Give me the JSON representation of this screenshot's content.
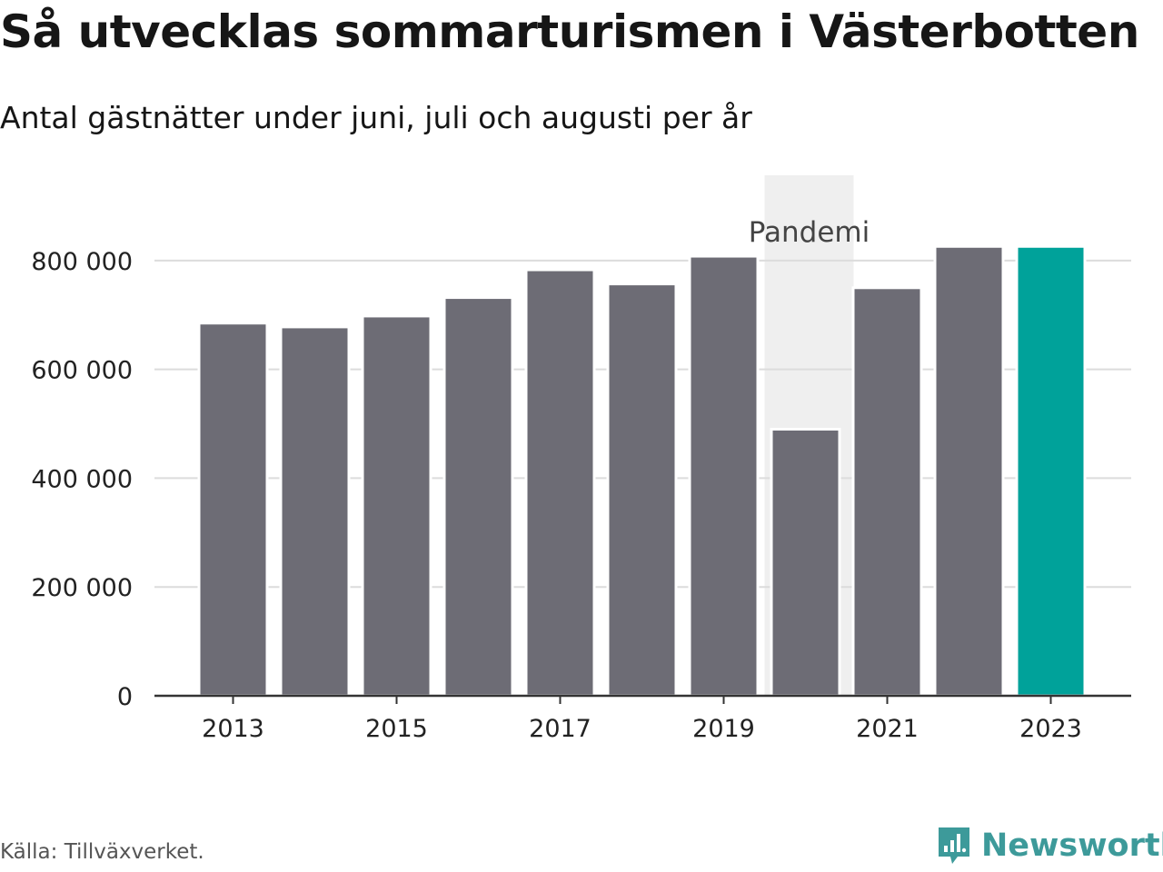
{
  "title": "Så utvecklas sommarturismen i Västerbotten",
  "subtitle": "Antal gästnätter under juni, juli och augusti per år",
  "source": "Källa: Tillväxverket.",
  "brand": {
    "name": "Newsworthy",
    "color": "#3d9a9a",
    "icon": "bar-chart-speech-bubble-icon"
  },
  "colors": {
    "bar": "#6d6c75",
    "highlight": "#00a29a",
    "band": "#efefef",
    "grid": "#dcdcdc",
    "axis": "#333333"
  },
  "chart_data": {
    "type": "bar",
    "categories": [
      "2013",
      "2014",
      "2015",
      "2016",
      "2017",
      "2018",
      "2019",
      "2020",
      "2021",
      "2022",
      "2023"
    ],
    "values": [
      685000,
      678000,
      698000,
      732000,
      783000,
      757000,
      808000,
      490000,
      750000,
      826000,
      826000
    ],
    "highlight_category": "2023",
    "x_tick_labels": [
      "2013",
      "2015",
      "2017",
      "2019",
      "2021",
      "2023"
    ],
    "y_ticks": [
      0,
      200000,
      400000,
      600000,
      800000
    ],
    "y_tick_labels": [
      "0",
      "200 000",
      "400 000",
      "600 000",
      "800 000"
    ],
    "ylim": [
      0,
      960000
    ],
    "grid": true,
    "annotation": {
      "label": "Pandemi",
      "from": "2020",
      "to": "2021"
    }
  }
}
